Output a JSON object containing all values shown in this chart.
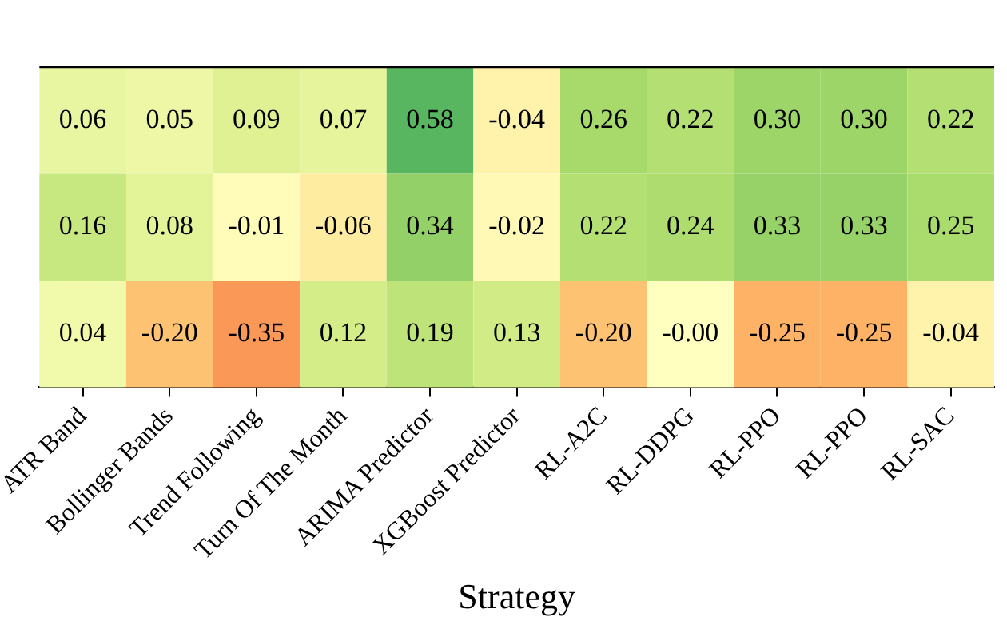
{
  "chart_data": {
    "type": "heatmap",
    "xlabel": "Strategy",
    "categories": [
      "ATR Band",
      "Bollinger Bands",
      "Trend Following",
      "Turn Of The Month",
      "ARIMA Predictor",
      "XGBoost Predictor",
      "RL-A2C",
      "RL-DDPG",
      "RL-PPO",
      "RL-PPO",
      "RL-SAC"
    ],
    "y_categories": [
      null,
      null,
      null
    ],
    "cells": [
      [
        0.06,
        0.05,
        0.09,
        0.07,
        0.58,
        -0.04,
        0.26,
        0.22,
        0.3,
        0.3,
        0.22
      ],
      [
        0.16,
        0.08,
        -0.01,
        -0.06,
        0.34,
        -0.02,
        0.22,
        0.24,
        0.33,
        0.33,
        0.25
      ],
      [
        0.04,
        -0.2,
        -0.35,
        0.12,
        0.19,
        0.13,
        -0.2,
        -0.0,
        -0.25,
        -0.25,
        -0.04
      ]
    ],
    "cell_labels": [
      [
        "0.06",
        "0.05",
        "0.09",
        "0.07",
        "0.58",
        "-0.04",
        "0.26",
        "0.22",
        "0.30",
        "0.30",
        "0.22"
      ],
      [
        "0.16",
        "0.08",
        "-0.01",
        "-0.06",
        "0.34",
        "-0.02",
        "0.22",
        "0.24",
        "0.33",
        "0.33",
        "0.25"
      ],
      [
        "0.04",
        "-0.20",
        "-0.35",
        "0.12",
        "0.19",
        "0.13",
        "-0.20",
        "-0.00",
        "-0.25",
        "-0.25",
        "-0.04"
      ]
    ]
  }
}
